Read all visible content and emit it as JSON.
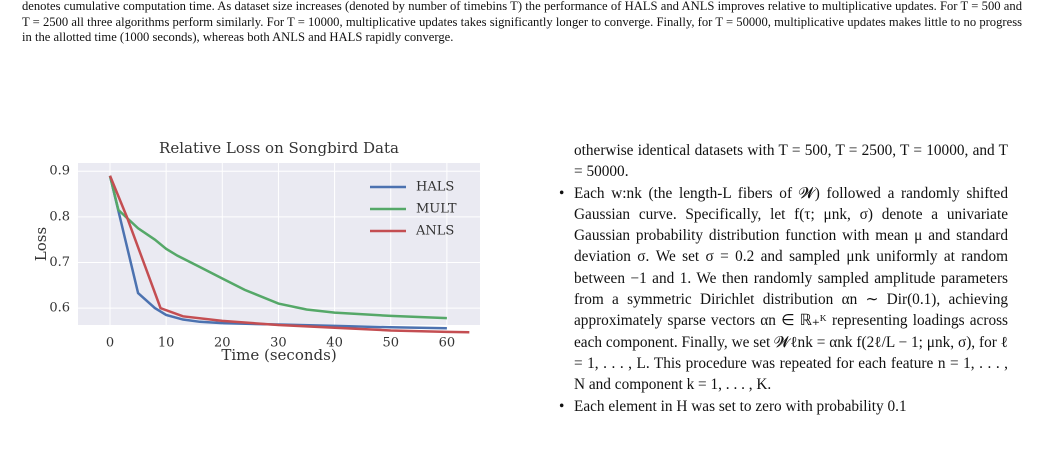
{
  "caption": "denotes cumulative computation time. As dataset size increases (denoted by number of timebins T) the performance of HALS and ANLS improves relative to multiplicative updates. For T = 500 and T = 2500 all three algorithms perform similarly. For T = 10000, multiplicative updates takes significantly longer to converge. Finally, for T = 50000, multiplicative updates makes little to no progress in the allotted time (1000 seconds), whereas both ANLS and HALS rapidly converge.",
  "chart_data": {
    "type": "line",
    "title": "Relative Loss on Songbird Data",
    "x_label": "Time (seconds)",
    "y_label": "Loss",
    "xlim": [
      -5.7,
      65.9
    ],
    "ylim": [
      0.563,
      0.918
    ],
    "xticks": [
      0,
      10,
      20,
      30,
      40,
      50,
      60
    ],
    "yticks": [
      0.6,
      0.7,
      0.8,
      0.9
    ],
    "grid": true,
    "legend": "upper right",
    "series": [
      {
        "name": "HALS",
        "color": "#4c72b0",
        "x": [
          0,
          5,
          8,
          10,
          13,
          16,
          20,
          30,
          40,
          50,
          60
        ],
        "values": [
          0.89,
          0.633,
          0.6,
          0.585,
          0.575,
          0.57,
          0.567,
          0.564,
          0.561,
          0.558,
          0.556
        ]
      },
      {
        "name": "MULT",
        "color": "#55a868",
        "x": [
          0,
          1.5,
          5,
          8,
          10,
          12,
          16,
          20,
          24,
          30,
          35,
          40,
          50,
          60
        ],
        "values": [
          0.89,
          0.815,
          0.775,
          0.75,
          0.73,
          0.715,
          0.69,
          0.665,
          0.64,
          0.61,
          0.597,
          0.59,
          0.583,
          0.578
        ]
      },
      {
        "name": "ANLS",
        "color": "#c44e52",
        "x": [
          0,
          3,
          6,
          9,
          13,
          20,
          30,
          40,
          50,
          60,
          64
        ],
        "values": [
          0.89,
          0.8,
          0.7,
          0.6,
          0.582,
          0.572,
          0.563,
          0.557,
          0.551,
          0.548,
          0.547
        ]
      }
    ]
  },
  "body": {
    "continuation": "otherwise identical datasets with T = 500, T = 2500, T = 10000, and T = 50000.",
    "bullets": [
      "Each w:nk (the length-L fibers of 𝓦) followed a randomly shifted Gaussian curve. Specifically, let f(τ; μnk, σ) denote a univariate Gaussian probability distribution function with mean μ and standard deviation σ. We set σ = 0.2 and sampled μnk uniformly at random between −1 and 1. We then randomly sampled amplitude parameters from a symmetric Dirichlet distribution αn ∼ Dir(0.1), achieving approximately sparse vectors αn ∈ ℝ₊ᴷ representing loadings across each component. Finally, we set 𝓦ℓnk = αnk f(2ℓ/L − 1; μnk, σ), for ℓ = 1, . . . , L. This procedure was repeated for each feature n = 1, . . . , N and component k = 1, . . . , K.",
      "Each element in H was set to zero with probability 0.1"
    ]
  }
}
